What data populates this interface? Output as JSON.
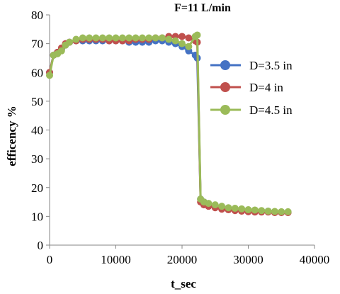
{
  "chart_data": {
    "type": "line",
    "title": "F=11 L/min",
    "xlabel": "t_sec",
    "ylabel": "efficency %",
    "xlim": [
      0,
      40000
    ],
    "ylim": [
      0,
      80
    ],
    "xticks": [
      0,
      10000,
      20000,
      30000,
      40000
    ],
    "yticks": [
      0,
      10,
      20,
      30,
      40,
      50,
      60,
      70,
      80
    ],
    "x_tick_labels": [
      "0",
      "10000",
      "20000",
      "30000",
      "40000"
    ],
    "y_tick_labels": [
      "0",
      "10",
      "20",
      "30",
      "40",
      "50",
      "60",
      "70",
      "80"
    ],
    "grid": false,
    "legend_position": "right",
    "series": [
      {
        "name": "D=3.5 in",
        "color": "#4472C4",
        "x": [
          0,
          600,
          1200,
          1800,
          2400,
          3000,
          4000,
          5000,
          6000,
          7000,
          8000,
          9000,
          10000,
          11000,
          12000,
          13000,
          14000,
          15000,
          16000,
          17000,
          18000,
          19000,
          20000,
          21000,
          22000,
          22300,
          22800,
          23300,
          24000,
          25000,
          26000,
          27000,
          28000,
          29000,
          30000,
          31000,
          32000,
          33000,
          34000,
          35000,
          36000
        ],
        "y": [
          60,
          66,
          67,
          68,
          69.5,
          70.5,
          71,
          71,
          71,
          71,
          71,
          71,
          71,
          71,
          70.5,
          70.5,
          70.5,
          70.5,
          71,
          71,
          70.5,
          70,
          69,
          67.5,
          66,
          65,
          16,
          15,
          14,
          13.5,
          13,
          12.8,
          12.5,
          12.3,
          12,
          12,
          11.8,
          11.8,
          11.6,
          11.5,
          11.5
        ]
      },
      {
        "name": "D=4 in",
        "color": "#C0504D",
        "x": [
          0,
          600,
          1200,
          1800,
          2400,
          3000,
          4000,
          5000,
          6000,
          7000,
          8000,
          9000,
          10000,
          11000,
          12000,
          13000,
          14000,
          15000,
          16000,
          17000,
          18000,
          19000,
          20000,
          21000,
          22000,
          22300,
          22800,
          23300,
          24000,
          25000,
          26000,
          27000,
          28000,
          29000,
          30000,
          31000,
          32000,
          33000,
          34000,
          35000,
          36000
        ],
        "y": [
          60,
          66,
          67,
          68.5,
          70,
          70.5,
          71,
          71.5,
          71.5,
          71.5,
          71.5,
          71,
          71,
          71,
          71,
          71.5,
          71.5,
          71.5,
          72,
          72,
          72.5,
          72.5,
          72.5,
          72,
          71,
          70.5,
          15,
          14,
          13.5,
          13,
          12.5,
          12.3,
          12,
          11.8,
          11.6,
          11.5,
          11.5,
          11.5,
          11.3,
          11.3,
          11.3
        ]
      },
      {
        "name": "D=4.5 in",
        "color": "#9BBB59",
        "x": [
          0,
          600,
          1200,
          1800,
          2400,
          3000,
          4000,
          5000,
          6000,
          7000,
          8000,
          9000,
          10000,
          11000,
          12000,
          13000,
          14000,
          15000,
          16000,
          17000,
          18000,
          19000,
          20000,
          21000,
          22000,
          22300,
          22800,
          23300,
          24000,
          25000,
          26000,
          27000,
          28000,
          29000,
          30000,
          31000,
          32000,
          33000,
          34000,
          35000,
          36000
        ],
        "y": [
          59,
          66,
          66.5,
          67.5,
          69.5,
          70.5,
          71.5,
          72,
          72,
          72,
          72,
          72,
          72,
          72,
          72,
          72,
          72,
          72,
          72,
          72,
          71.5,
          71,
          70,
          69,
          72.5,
          73,
          16,
          15,
          14.5,
          14,
          13.5,
          13,
          12.8,
          12.6,
          12.3,
          12.2,
          12,
          11.8,
          11.7,
          11.6,
          11.6
        ]
      }
    ]
  }
}
